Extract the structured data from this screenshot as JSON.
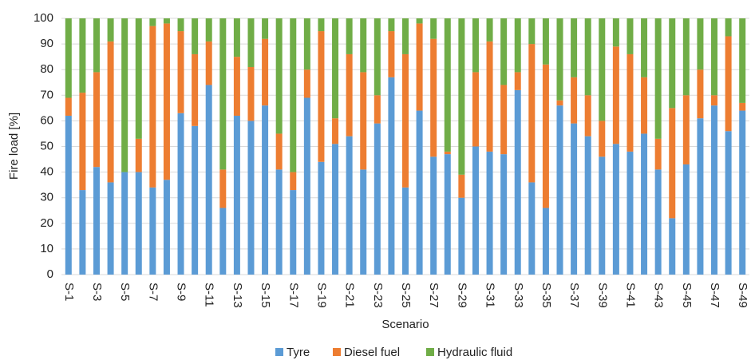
{
  "chart_data": {
    "type": "stacked_bar",
    "x_label": "Scenario",
    "y_label": "Fire load [%]",
    "categories": [
      "S-1",
      null,
      "S-3",
      null,
      "S-5",
      null,
      "S-7",
      null,
      "S-9",
      null,
      "S-11",
      null,
      "S-13",
      null,
      "S-15",
      null,
      "S-17",
      null,
      "S-19",
      null,
      "S-21",
      null,
      "S-23",
      null,
      "S-25",
      null,
      "S-27",
      null,
      "S-29",
      null,
      "S-31",
      null,
      "S-33",
      null,
      "S-35",
      null,
      "S-37",
      null,
      "S-39",
      null,
      "S-41",
      null,
      "S-43",
      null,
      "S-45",
      null,
      "S-47",
      null,
      "S-49"
    ],
    "series": [
      {
        "name": "Tyre",
        "color": "#5b9bd5",
        "values": [
          62,
          33,
          42,
          36,
          40,
          40,
          34,
          37,
          63,
          58,
          74,
          26,
          62,
          60,
          66,
          41,
          33,
          69,
          44,
          51,
          54,
          41,
          59,
          77,
          34,
          64,
          46,
          47,
          30,
          50,
          48,
          47,
          72,
          36,
          26,
          66,
          59,
          54,
          46,
          51,
          48,
          55,
          41,
          22,
          43,
          61,
          66,
          56,
          64
        ]
      },
      {
        "name": "Diesel fuel",
        "color": "#ed7d31",
        "values": [
          7,
          38,
          37,
          55,
          0,
          13,
          63,
          61,
          32,
          28,
          17,
          15,
          23,
          21,
          26,
          14,
          7,
          11,
          51,
          10,
          32,
          38,
          11,
          18,
          52,
          34,
          46,
          1,
          9,
          29,
          43,
          27,
          7,
          54,
          56,
          2,
          18,
          16,
          14,
          38,
          38,
          22,
          12,
          43,
          27,
          19,
          4,
          37,
          3
        ]
      },
      {
        "name": "Hydraulic fluid",
        "color": "#70ad47",
        "values": [
          31,
          29,
          21,
          9,
          60,
          47,
          3,
          2,
          5,
          14,
          9,
          59,
          15,
          19,
          8,
          45,
          60,
          20,
          5,
          39,
          14,
          21,
          30,
          5,
          14,
          2,
          8,
          52,
          61,
          21,
          9,
          26,
          21,
          10,
          18,
          32,
          23,
          30,
          40,
          11,
          14,
          23,
          47,
          35,
          30,
          20,
          30,
          7,
          33
        ]
      }
    ],
    "ylim": [
      0,
      100
    ],
    "yticks": [
      0,
      10,
      20,
      30,
      40,
      50,
      60,
      70,
      80,
      90,
      100
    ],
    "grid": true,
    "legend": "bottom"
  }
}
